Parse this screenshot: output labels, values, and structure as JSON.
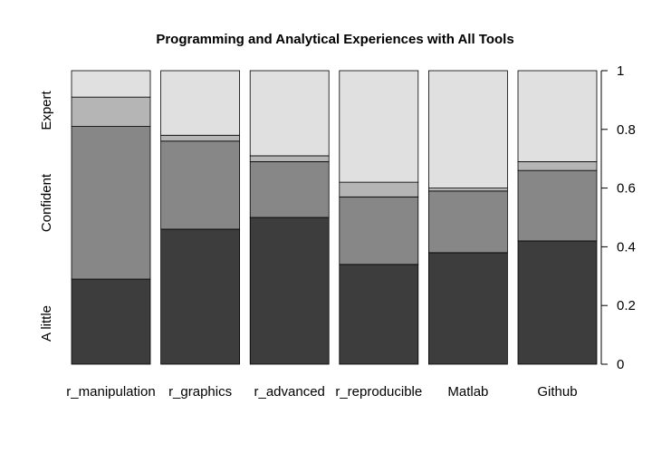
{
  "chart_data": {
    "type": "bar",
    "stacked": true,
    "title": "Programming and Analytical Experiences with All Tools",
    "categories": [
      "r_manipulation",
      "r_graphics",
      "r_advanced",
      "r_reproducible",
      "Matlab",
      "Github"
    ],
    "series": [
      {
        "values": [
          0.29,
          0.46,
          0.5,
          0.34,
          0.38,
          0.42
        ],
        "color": "#3d3d3d"
      },
      {
        "values": [
          0.52,
          0.3,
          0.19,
          0.23,
          0.21,
          0.24
        ],
        "color": "#878787"
      },
      {
        "values": [
          0.1,
          0.02,
          0.02,
          0.05,
          0.01,
          0.03
        ],
        "color": "#b5b5b5"
      },
      {
        "values": [
          0.09,
          0.22,
          0.29,
          0.38,
          0.4,
          0.31
        ],
        "color": "#e0e0e0"
      }
    ],
    "ylim": [
      0,
      1
    ],
    "y_ticks": [
      0,
      0.2,
      0.4,
      0.6,
      0.8,
      1
    ],
    "y_tick_labels": [
      "0",
      "0.2",
      "0.4",
      "0.6",
      "0.8",
      "1"
    ],
    "y_axis_side": "right",
    "level_labels": [
      "A little",
      "Confident",
      "Expert"
    ],
    "grid": false
  }
}
